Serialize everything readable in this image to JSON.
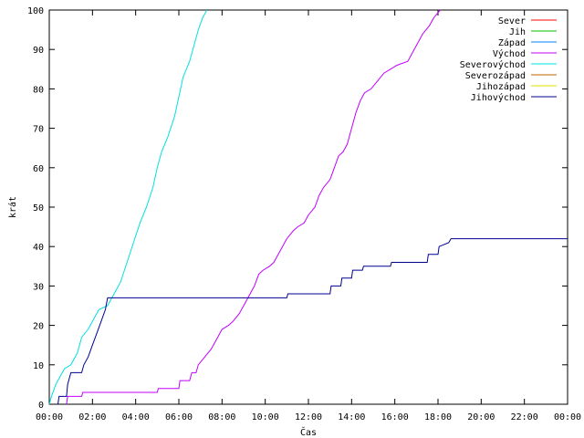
{
  "chart_data": {
    "type": "line",
    "title": "",
    "xlabel": "Čas",
    "ylabel": "krát",
    "xlim": [
      0,
      24
    ],
    "ylim": [
      0,
      100
    ],
    "grid": false,
    "legend": "top-right",
    "x_ticks": [
      "00:00",
      "02:00",
      "04:00",
      "06:00",
      "08:00",
      "10:00",
      "12:00",
      "14:00",
      "16:00",
      "18:00",
      "20:00",
      "22:00",
      "00:00"
    ],
    "y_ticks": [
      "0",
      "10",
      "20",
      "30",
      "40",
      "50",
      "60",
      "70",
      "80",
      "90",
      "100"
    ],
    "series": [
      {
        "name": "Sever",
        "color": "#ff0000",
        "points": []
      },
      {
        "name": "Jih",
        "color": "#00c000",
        "points": []
      },
      {
        "name": "Západ",
        "color": "#0080ff",
        "points": []
      },
      {
        "name": "Východ",
        "color": "#c000ff",
        "points": [
          [
            0.8,
            0
          ],
          [
            0.85,
            2
          ],
          [
            1.5,
            2
          ],
          [
            1.55,
            3
          ],
          [
            5.0,
            3
          ],
          [
            5.05,
            4
          ],
          [
            6.0,
            4
          ],
          [
            6.05,
            6
          ],
          [
            6.5,
            6
          ],
          [
            6.6,
            8
          ],
          [
            6.8,
            8
          ],
          [
            6.9,
            10
          ],
          [
            7.2,
            12
          ],
          [
            7.5,
            14
          ],
          [
            7.8,
            17
          ],
          [
            8.0,
            19
          ],
          [
            8.3,
            20
          ],
          [
            8.5,
            21
          ],
          [
            8.8,
            23
          ],
          [
            9.0,
            25
          ],
          [
            9.2,
            27
          ],
          [
            9.5,
            30
          ],
          [
            9.7,
            33
          ],
          [
            9.9,
            34
          ],
          [
            10.2,
            35
          ],
          [
            10.4,
            36
          ],
          [
            10.6,
            38
          ],
          [
            10.8,
            40
          ],
          [
            11.0,
            42
          ],
          [
            11.3,
            44
          ],
          [
            11.5,
            45
          ],
          [
            11.8,
            46
          ],
          [
            12.0,
            48
          ],
          [
            12.3,
            50
          ],
          [
            12.5,
            53
          ],
          [
            12.7,
            55
          ],
          [
            13.0,
            57
          ],
          [
            13.2,
            60
          ],
          [
            13.4,
            63
          ],
          [
            13.6,
            64
          ],
          [
            13.8,
            66
          ],
          [
            14.0,
            70
          ],
          [
            14.2,
            74
          ],
          [
            14.4,
            77
          ],
          [
            14.6,
            79
          ],
          [
            14.9,
            80
          ],
          [
            15.2,
            82
          ],
          [
            15.5,
            84
          ],
          [
            15.8,
            85
          ],
          [
            16.1,
            86
          ],
          [
            16.6,
            87
          ],
          [
            16.8,
            89
          ],
          [
            17.0,
            91
          ],
          [
            17.3,
            94
          ],
          [
            17.6,
            96
          ],
          [
            17.8,
            98
          ],
          [
            18.1,
            100
          ]
        ]
      },
      {
        "name": "Severovýchod",
        "color": "#00e0e0",
        "points": [
          [
            0.0,
            0
          ],
          [
            0.1,
            2
          ],
          [
            0.3,
            5
          ],
          [
            0.5,
            7
          ],
          [
            0.7,
            9
          ],
          [
            1.0,
            10
          ],
          [
            1.3,
            13
          ],
          [
            1.5,
            17
          ],
          [
            1.8,
            19
          ],
          [
            2.0,
            21
          ],
          [
            2.3,
            24
          ],
          [
            2.7,
            25
          ],
          [
            3.0,
            28
          ],
          [
            3.3,
            31
          ],
          [
            3.6,
            36
          ],
          [
            3.9,
            41
          ],
          [
            4.2,
            46
          ],
          [
            4.5,
            50
          ],
          [
            4.8,
            55
          ],
          [
            5.0,
            60
          ],
          [
            5.2,
            64
          ],
          [
            5.5,
            68
          ],
          [
            5.8,
            73
          ],
          [
            6.0,
            78
          ],
          [
            6.2,
            83
          ],
          [
            6.5,
            87
          ],
          [
            6.7,
            91
          ],
          [
            6.9,
            95
          ],
          [
            7.1,
            98
          ],
          [
            7.3,
            100
          ]
        ]
      },
      {
        "name": "Severozápad",
        "color": "#c06000",
        "points": []
      },
      {
        "name": "Jihozápad",
        "color": "#e0e000",
        "points": []
      },
      {
        "name": "Jihovýchod",
        "color": "#000090",
        "points": [
          [
            0.4,
            0
          ],
          [
            0.45,
            2
          ],
          [
            0.8,
            2
          ],
          [
            0.85,
            5
          ],
          [
            1.0,
            8
          ],
          [
            1.5,
            8
          ],
          [
            1.6,
            10
          ],
          [
            1.8,
            12
          ],
          [
            2.0,
            15
          ],
          [
            2.2,
            18
          ],
          [
            2.4,
            21
          ],
          [
            2.6,
            24
          ],
          [
            2.7,
            27
          ],
          [
            11.0,
            27
          ],
          [
            11.05,
            28
          ],
          [
            13.0,
            28
          ],
          [
            13.05,
            30
          ],
          [
            13.5,
            30
          ],
          [
            13.55,
            32
          ],
          [
            14.0,
            32
          ],
          [
            14.05,
            34
          ],
          [
            14.5,
            34
          ],
          [
            14.55,
            35
          ],
          [
            15.8,
            35
          ],
          [
            15.85,
            36
          ],
          [
            17.5,
            36
          ],
          [
            17.55,
            38
          ],
          [
            18.0,
            38
          ],
          [
            18.05,
            40
          ],
          [
            18.5,
            41
          ],
          [
            18.6,
            42
          ],
          [
            24.0,
            42
          ]
        ]
      }
    ]
  }
}
